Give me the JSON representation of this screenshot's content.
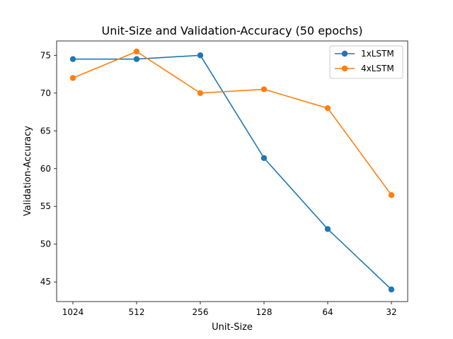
{
  "chart_data": {
    "type": "line",
    "title": "Unit-Size and Validation-Accuracy (50 epochs)",
    "xlabel": "Unit-Size",
    "ylabel": "Validation-Accuracy",
    "categories": [
      "1024",
      "512",
      "256",
      "128",
      "64",
      "32"
    ],
    "yticks": [
      45,
      50,
      55,
      60,
      65,
      70,
      75
    ],
    "ylim": [
      42.4,
      76.9
    ],
    "grid": false,
    "legend_position": "top-right",
    "series": [
      {
        "name": "1xLSTM",
        "color": "#1f77b4",
        "values": [
          74.5,
          74.5,
          75.0,
          61.4,
          52.0,
          44.0
        ]
      },
      {
        "name": "4xLSTM",
        "color": "#ff7f0e",
        "values": [
          72.0,
          75.5,
          70.0,
          70.5,
          68.0,
          56.5
        ]
      }
    ]
  }
}
